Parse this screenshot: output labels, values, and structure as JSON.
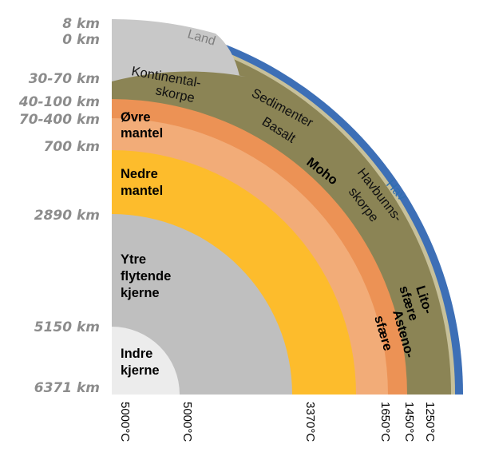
{
  "depth_labels": [
    "8 km",
    "0 km",
    "30-70 km",
    "40-100 km",
    "70-400 km",
    "700 km",
    "2890 km",
    "5150 km",
    "6371 km"
  ],
  "layer_labels": {
    "ovre_mantel": [
      "Øvre",
      "mantel"
    ],
    "nedre_mantel": [
      "Nedre",
      "mantel"
    ],
    "ytre_kjerne": [
      "Ytre",
      "flytende",
      "kjerne"
    ],
    "indre_kjerne": [
      "Indre",
      "kjerne"
    ]
  },
  "curved_labels": {
    "land": "Land",
    "hav": "Hav",
    "kontinentalskorpe": [
      "Kontinental-",
      "skorpe"
    ],
    "sedimenter": "Sedimenter",
    "basalt": "Basalt",
    "moho": "Moho",
    "havbunnsskorpe": [
      "Havbunns-",
      "skorpe"
    ],
    "litosfaere": [
      "Lito-",
      "sfære"
    ],
    "astenosfaere": [
      "Asteno-",
      "sfære"
    ]
  },
  "temperature_labels": [
    "5000°C",
    "5000°C",
    "3370°C",
    "1650°C",
    "1450°C",
    "1250°C"
  ],
  "colors": {
    "land": "#c8c8c8",
    "hav": "#3d6fb6",
    "sediment": "#c7c09a",
    "crust": "#8b8455",
    "upper_mantle": "#ec9255",
    "asthenosphere": "#f2ac78",
    "lower_mantle": "#fdbc2c",
    "outer_core": "#bfbfbf",
    "inner_core": "#ececec"
  }
}
